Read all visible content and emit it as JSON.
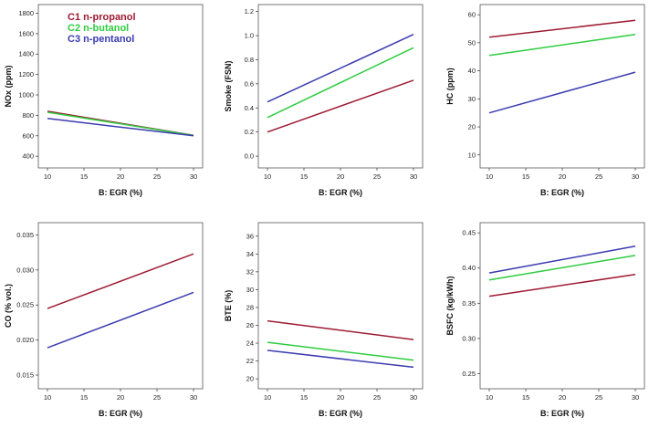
{
  "colors": {
    "C1": "#9e1b32",
    "C2": "#2ecc40",
    "C3": "#3b3bb0"
  },
  "legend": [
    {
      "id": "C1",
      "label": "C1 n-propanol"
    },
    {
      "id": "C2",
      "label": "C2 n-butanol"
    },
    {
      "id": "C3",
      "label": "C3 n-pentanol"
    }
  ],
  "chart_data": [
    {
      "type": "line",
      "id": "nox",
      "xlabel": "B: EGR (%)",
      "ylabel": "NOx (ppm)",
      "xlim": [
        10,
        30
      ],
      "xticks": [
        10,
        15,
        20,
        25,
        30
      ],
      "ylim": [
        330,
        1840
      ],
      "yticks": [
        400,
        600,
        800,
        1000,
        1200,
        1400,
        1600,
        1800
      ],
      "series": [
        {
          "name": "C1 n-propanol",
          "color_key": "C1",
          "x": [
            10,
            30
          ],
          "y": [
            840,
            605
          ]
        },
        {
          "name": "C2 n-butanol",
          "color_key": "C2",
          "x": [
            10,
            30
          ],
          "y": [
            830,
            603
          ]
        },
        {
          "name": "C3 n-pentanol",
          "color_key": "C3",
          "x": [
            10,
            30
          ],
          "y": [
            770,
            600
          ]
        }
      ],
      "legend": true
    },
    {
      "type": "line",
      "id": "smoke",
      "xlabel": "B: EGR (%)",
      "ylabel": "Smoke (FSN)",
      "xlim": [
        10,
        30
      ],
      "xticks": [
        10,
        15,
        20,
        25,
        30
      ],
      "ylim": [
        -0.06,
        1.22
      ],
      "yticks": [
        "0.0",
        "0.2",
        "0.4",
        "0.6",
        "0.8",
        "1.0",
        "1.2"
      ],
      "series": [
        {
          "name": "C1 n-propanol",
          "color_key": "C1",
          "x": [
            10,
            30
          ],
          "y": [
            0.2,
            0.63
          ]
        },
        {
          "name": "C2 n-butanol",
          "color_key": "C2",
          "x": [
            10,
            30
          ],
          "y": [
            0.32,
            0.9
          ]
        },
        {
          "name": "C3 n-pentanol",
          "color_key": "C3",
          "x": [
            10,
            30
          ],
          "y": [
            0.45,
            1.01
          ]
        }
      ]
    },
    {
      "type": "line",
      "id": "hc",
      "xlabel": "B: EGR (%)",
      "ylabel": "HC (ppm)",
      "xlim": [
        10,
        30
      ],
      "xticks": [
        10,
        15,
        20,
        25,
        30
      ],
      "ylim": [
        7,
        62
      ],
      "yticks": [
        10,
        20,
        30,
        40,
        50,
        60
      ],
      "series": [
        {
          "name": "C1 n-propanol",
          "color_key": "C1",
          "x": [
            10,
            30
          ],
          "y": [
            52,
            58
          ]
        },
        {
          "name": "C2 n-butanol",
          "color_key": "C2",
          "x": [
            10,
            30
          ],
          "y": [
            45.5,
            53
          ]
        },
        {
          "name": "C3 n-pentanol",
          "color_key": "C3",
          "x": [
            10,
            30
          ],
          "y": [
            25,
            39.5
          ]
        }
      ]
    },
    {
      "type": "line",
      "id": "co",
      "xlabel": "B: EGR (%)",
      "ylabel": "CO (% vol.)",
      "xlim": [
        10,
        30
      ],
      "xticks": [
        10,
        15,
        20,
        25,
        30
      ],
      "ylim": [
        0.0137,
        0.0361
      ],
      "yticks": [
        "0.015",
        "0.020",
        "0.025",
        "0.030",
        "0.035"
      ],
      "series": [
        {
          "name": "C1 n-propanol",
          "color_key": "C1",
          "x": [
            10,
            30
          ],
          "y": [
            0.0245,
            0.0323
          ]
        },
        {
          "name": "C3 n-pentanol",
          "color_key": "C3",
          "x": [
            10,
            30
          ],
          "y": [
            0.0189,
            0.0268
          ]
        }
      ]
    },
    {
      "type": "line",
      "id": "bte",
      "xlabel": "B: EGR (%)",
      "ylabel": "BTE (%)",
      "xlim": [
        10,
        30
      ],
      "xticks": [
        10,
        15,
        20,
        25,
        30
      ],
      "ylim": [
        19.4,
        37
      ],
      "yticks": [
        20,
        22,
        24,
        26,
        28,
        30,
        32,
        34,
        36
      ],
      "series": [
        {
          "name": "C1 n-propanol",
          "color_key": "C1",
          "x": [
            10,
            30
          ],
          "y": [
            26.5,
            24.4
          ]
        },
        {
          "name": "C2 n-butanol",
          "color_key": "C2",
          "x": [
            10,
            30
          ],
          "y": [
            24.1,
            22.1
          ]
        },
        {
          "name": "C3 n-pentanol",
          "color_key": "C3",
          "x": [
            10,
            30
          ],
          "y": [
            23.2,
            21.3
          ]
        }
      ]
    },
    {
      "type": "line",
      "id": "bsfc",
      "xlabel": "B: EGR (%)",
      "ylabel": "BSFC (kg/kWh)",
      "xlim": [
        10,
        30
      ],
      "xticks": [
        10,
        15,
        20,
        25,
        30
      ],
      "ylim": [
        0.235,
        0.458
      ],
      "yticks": [
        "0.25",
        "0.30",
        "0.35",
        "0.40",
        "0.45"
      ],
      "series": [
        {
          "name": "C1 n-propanol",
          "color_key": "C1",
          "x": [
            10,
            30
          ],
          "y": [
            0.36,
            0.391
          ]
        },
        {
          "name": "C2 n-butanol",
          "color_key": "C2",
          "x": [
            10,
            30
          ],
          "y": [
            0.383,
            0.418
          ]
        },
        {
          "name": "C3 n-pentanol",
          "color_key": "C3",
          "x": [
            10,
            30
          ],
          "y": [
            0.393,
            0.431
          ]
        }
      ]
    }
  ]
}
